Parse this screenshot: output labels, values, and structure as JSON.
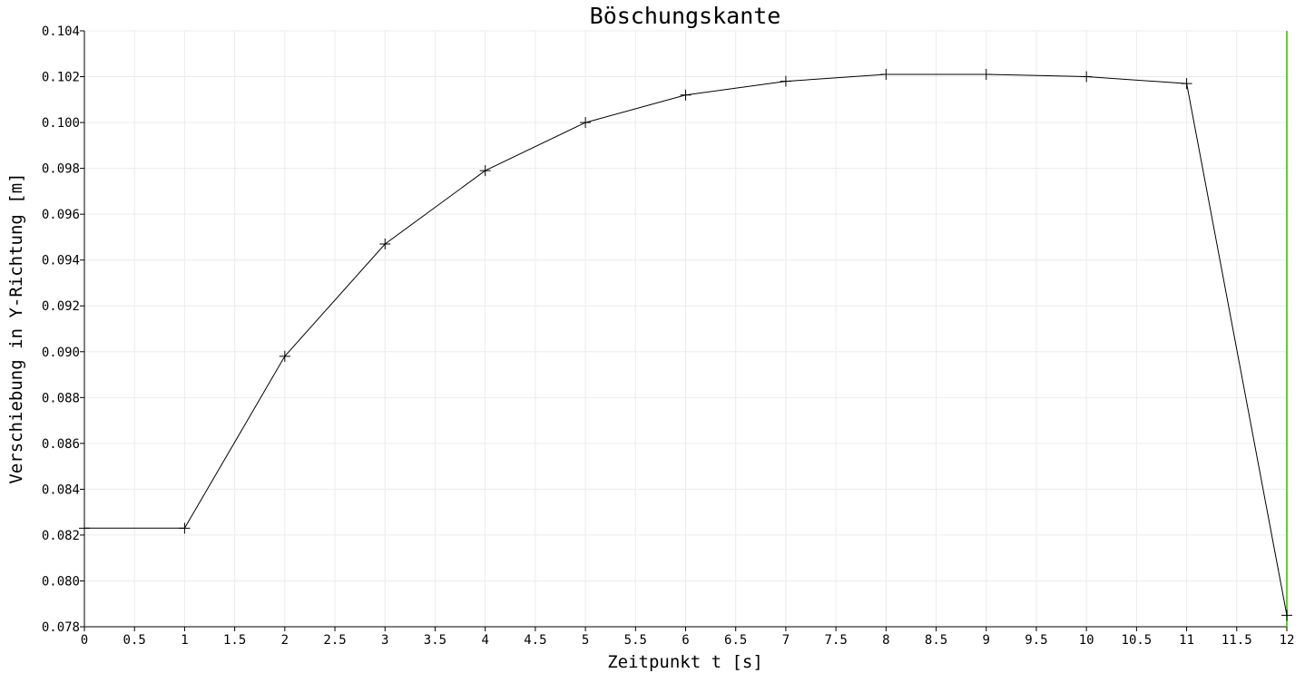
{
  "chart_data": {
    "type": "line",
    "title": "Böschungskante",
    "xlabel": "Zeitpunkt t [s]",
    "ylabel": "Verschiebung in Y-Richtung [m]",
    "xlim": [
      0,
      12
    ],
    "ylim": [
      0.078,
      0.104
    ],
    "x_ticks": [
      "0",
      "0.5",
      "1",
      "1.5",
      "2",
      "2.5",
      "3",
      "3.5",
      "4",
      "4.5",
      "5",
      "5.5",
      "6",
      "6.5",
      "7",
      "7.5",
      "8",
      "8.5",
      "9",
      "9.5",
      "10",
      "10.5",
      "11",
      "11.5",
      "12"
    ],
    "y_ticks": [
      "0.078",
      "0.080",
      "0.082",
      "0.084",
      "0.086",
      "0.088",
      "0.090",
      "0.092",
      "0.094",
      "0.096",
      "0.098",
      "0.100",
      "0.102",
      "0.104"
    ],
    "grid": true,
    "marker": "plus",
    "series": [
      {
        "x": [
          0,
          1,
          2,
          3,
          4,
          5,
          6,
          7,
          8,
          9,
          10,
          11,
          12
        ],
        "values": [
          0.0823,
          0.0823,
          0.0898,
          0.0947,
          0.0979,
          0.1,
          0.1012,
          0.1018,
          0.1021,
          0.1021,
          0.102,
          0.1017,
          0.0785
        ],
        "color": "#000000"
      }
    ],
    "current_time_line": {
      "x": 12,
      "color": "#66cc33"
    }
  }
}
